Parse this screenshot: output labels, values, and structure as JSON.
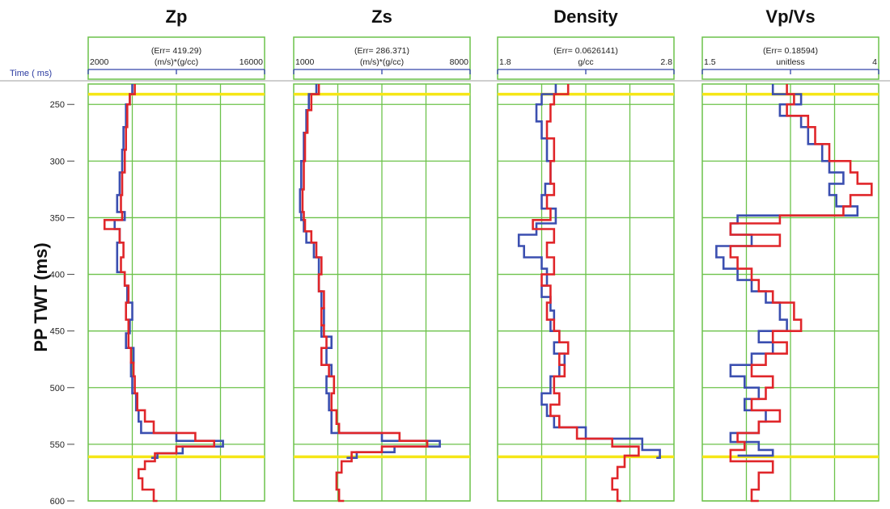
{
  "y_axis": {
    "label": "PP TWT (ms)",
    "time_label": "Time ( ms)",
    "range": [
      232,
      600
    ],
    "ticks": [
      250,
      300,
      350,
      400,
      450,
      500,
      550,
      600
    ]
  },
  "horizons": [
    241,
    561
  ],
  "colors": {
    "blue": "#3b4fb0",
    "red": "#e0262a",
    "grid": "#6cc24a",
    "horizon": "#f5e616",
    "header_line": "#3344aa"
  },
  "chart_data": [
    {
      "type": "line",
      "title": "Zp",
      "err_label": "(Err= 419.29)",
      "unit": "(m/s)*(g/cc)",
      "xlim": [
        2000,
        16000
      ],
      "x_min_label": "2000",
      "x_max_label": "16000",
      "series": [
        {
          "name": "blue",
          "depth": [
            232,
            241,
            250,
            270,
            290,
            310,
            330,
            345,
            352,
            360,
            372,
            385,
            398,
            410,
            425,
            440,
            452,
            465,
            478,
            490,
            505,
            520,
            530,
            540,
            547,
            552,
            558,
            562
          ],
          "values": [
            5500,
            5300,
            5000,
            4800,
            4700,
            4500,
            4300,
            4900,
            4100,
            4500,
            4300,
            4300,
            4900,
            5100,
            5500,
            5300,
            5000,
            5600,
            5400,
            5500,
            5800,
            6000,
            6200,
            9000,
            12700,
            9500,
            7500,
            7000
          ]
        },
        {
          "name": "red",
          "depth": [
            232,
            241,
            250,
            270,
            290,
            310,
            330,
            345,
            352,
            360,
            372,
            385,
            398,
            410,
            425,
            440,
            452,
            465,
            478,
            490,
            505,
            520,
            530,
            540,
            547,
            552,
            558,
            565,
            572,
            580,
            590,
            600
          ],
          "values": [
            5700,
            5300,
            5100,
            5000,
            4900,
            4700,
            4600,
            4700,
            3300,
            4500,
            4800,
            4600,
            4900,
            5200,
            5000,
            5200,
            5200,
            5400,
            5600,
            5700,
            5900,
            6500,
            7200,
            10500,
            12000,
            9000,
            7300,
            6500,
            6000,
            6300,
            7200,
            7500
          ]
        }
      ]
    },
    {
      "type": "line",
      "title": "Zs",
      "err_label": "(Err= 286.371)",
      "unit": "(m/s)*(g/cc)",
      "xlim": [
        1000,
        8000
      ],
      "x_min_label": "1000",
      "x_max_label": "8000",
      "series": [
        {
          "name": "blue",
          "depth": [
            232,
            241,
            255,
            275,
            300,
            325,
            345,
            352,
            362,
            372,
            385,
            400,
            415,
            430,
            445,
            455,
            465,
            480,
            490,
            505,
            520,
            532,
            540,
            547,
            552,
            557,
            562
          ],
          "values": [
            1900,
            1600,
            1500,
            1400,
            1300,
            1250,
            1300,
            1400,
            1500,
            1800,
            2000,
            2000,
            2100,
            2200,
            2100,
            2500,
            2300,
            2500,
            2300,
            2400,
            2500,
            2500,
            4500,
            6800,
            5000,
            3500,
            3100
          ]
        },
        {
          "name": "red",
          "depth": [
            232,
            241,
            255,
            275,
            300,
            325,
            345,
            352,
            362,
            372,
            385,
            400,
            415,
            430,
            445,
            455,
            465,
            480,
            490,
            505,
            520,
            532,
            540,
            547,
            552,
            557,
            565,
            575,
            590,
            600
          ],
          "values": [
            2000,
            1700,
            1550,
            1450,
            1400,
            1350,
            1400,
            1450,
            1700,
            1900,
            2100,
            2000,
            2200,
            2100,
            2200,
            2300,
            2100,
            2400,
            2600,
            2500,
            2700,
            2800,
            5200,
            6300,
            4500,
            3300,
            2900,
            2700,
            2800,
            3000
          ]
        }
      ]
    },
    {
      "type": "line",
      "title": "Density",
      "err_label": "(Err= 0.0626141)",
      "unit": "g/cc",
      "xlim": [
        1.8,
        2.8
      ],
      "x_min_label": "1.8",
      "x_max_label": "2.8",
      "series": [
        {
          "name": "blue",
          "depth": [
            232,
            241,
            250,
            265,
            280,
            300,
            320,
            330,
            342,
            355,
            365,
            375,
            385,
            395,
            410,
            420,
            432,
            440,
            450,
            460,
            470,
            480,
            490,
            505,
            515,
            525,
            535,
            545,
            555,
            562
          ],
          "values": [
            2.13,
            2.05,
            2.02,
            2.05,
            2.08,
            2.1,
            2.07,
            2.05,
            2.13,
            2.02,
            1.92,
            1.95,
            2.05,
            2.08,
            2.05,
            2.1,
            2.12,
            2.1,
            2.15,
            2.12,
            2.18,
            2.15,
            2.1,
            2.05,
            2.08,
            2.12,
            2.3,
            2.62,
            2.72,
            2.7
          ]
        },
        {
          "name": "red",
          "depth": [
            232,
            241,
            250,
            265,
            280,
            300,
            320,
            330,
            342,
            352,
            360,
            372,
            385,
            400,
            410,
            425,
            440,
            450,
            460,
            470,
            480,
            490,
            505,
            515,
            525,
            535,
            545,
            552,
            560,
            570,
            580,
            590,
            600
          ],
          "values": [
            2.2,
            2.12,
            2.1,
            2.08,
            2.12,
            2.1,
            2.12,
            2.08,
            2.1,
            2.0,
            2.12,
            2.08,
            2.12,
            2.05,
            2.1,
            2.08,
            2.12,
            2.15,
            2.2,
            2.15,
            2.18,
            2.12,
            2.15,
            2.1,
            2.15,
            2.25,
            2.45,
            2.6,
            2.52,
            2.48,
            2.45,
            2.48,
            2.5
          ]
        }
      ]
    },
    {
      "type": "line",
      "title": "Vp/Vs",
      "err_label": "(Err= 0.18594)",
      "unit": "unitless",
      "xlim": [
        1.5,
        4
      ],
      "x_min_label": "1.5",
      "x_max_label": "4",
      "series": [
        {
          "name": "blue",
          "depth": [
            232,
            241,
            250,
            260,
            270,
            285,
            300,
            310,
            320,
            330,
            340,
            348,
            355,
            365,
            375,
            385,
            395,
            405,
            415,
            425,
            440,
            450,
            460,
            470,
            480,
            490,
            500,
            510,
            520,
            530,
            540,
            548,
            555,
            560
          ],
          "values": [
            2.5,
            2.9,
            2.6,
            2.9,
            3.0,
            3.2,
            3.3,
            3.5,
            3.3,
            3.4,
            3.7,
            2.0,
            1.9,
            2.2,
            1.7,
            1.8,
            2.0,
            2.2,
            2.4,
            2.6,
            2.7,
            2.3,
            2.5,
            2.2,
            1.9,
            2.1,
            2.3,
            2.1,
            2.4,
            2.3,
            1.9,
            2.3,
            2.5,
            2.0
          ]
        },
        {
          "name": "red",
          "depth": [
            232,
            241,
            250,
            260,
            270,
            285,
            300,
            310,
            320,
            330,
            340,
            348,
            355,
            365,
            375,
            385,
            395,
            405,
            415,
            425,
            440,
            450,
            460,
            470,
            480,
            490,
            500,
            510,
            520,
            530,
            540,
            548,
            555,
            565,
            575,
            590,
            600
          ],
          "values": [
            2.7,
            2.8,
            2.7,
            3.0,
            3.1,
            3.3,
            3.6,
            3.7,
            3.9,
            3.6,
            3.5,
            2.6,
            1.9,
            2.6,
            1.9,
            2.0,
            2.2,
            2.3,
            2.5,
            2.8,
            2.9,
            2.5,
            2.7,
            2.4,
            2.2,
            2.5,
            2.4,
            2.2,
            2.6,
            2.3,
            2.0,
            2.1,
            1.9,
            2.5,
            2.3,
            2.2,
            2.3
          ]
        }
      ]
    }
  ]
}
